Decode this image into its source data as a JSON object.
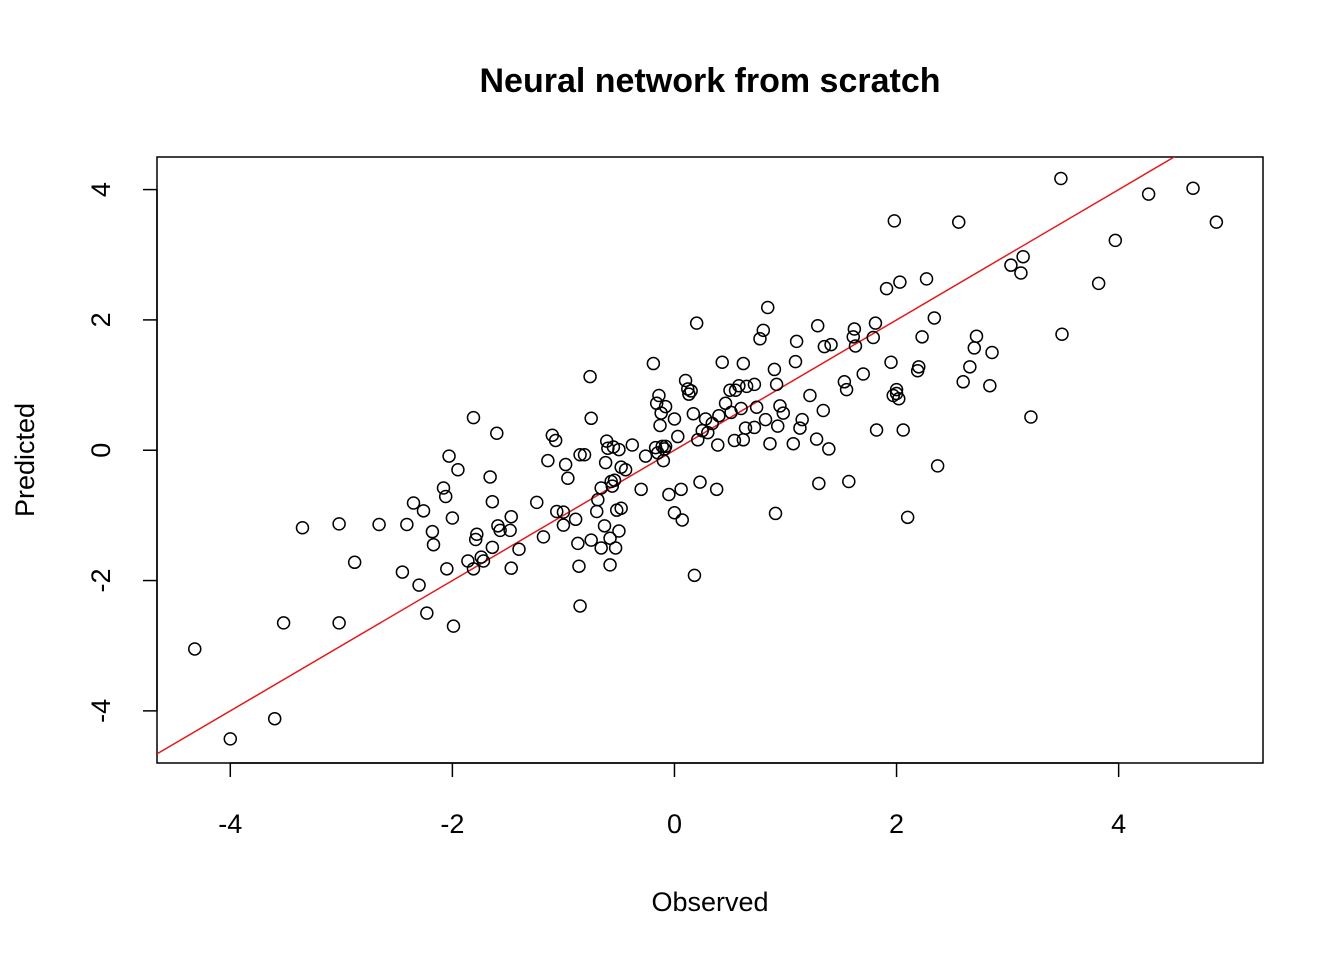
{
  "chart_data": {
    "type": "scatter",
    "title": "Neural network from scratch",
    "xlabel": "Observed",
    "ylabel": "Predicted",
    "xlim": [
      -4.66,
      5.3
    ],
    "ylim": [
      -4.8,
      4.5
    ],
    "xticks": [
      -4,
      -2,
      0,
      2,
      4
    ],
    "yticks": [
      -4,
      -2,
      0,
      2,
      4
    ],
    "xtick_labels": [
      "-4",
      "-2",
      "0",
      "2",
      "4"
    ],
    "ytick_labels": [
      "-4",
      "-2",
      "0",
      "2",
      "4"
    ],
    "grid": false,
    "point_marker": "open-circle",
    "point_color": "#000000",
    "reference_line": {
      "intercept": 0,
      "slope": 1,
      "color": "#e31a1c"
    },
    "points": [
      [
        -4.32,
        -3.05
      ],
      [
        -4.0,
        -4.43
      ],
      [
        -3.6,
        -4.12
      ],
      [
        -3.52,
        -2.65
      ],
      [
        -3.35,
        -1.19
      ],
      [
        -3.02,
        -1.13
      ],
      [
        -3.02,
        -2.65
      ],
      [
        -2.88,
        -1.72
      ],
      [
        -2.66,
        -1.14
      ],
      [
        -2.45,
        -1.87
      ],
      [
        -2.41,
        -1.14
      ],
      [
        -2.35,
        -0.81
      ],
      [
        -2.3,
        -2.07
      ],
      [
        -2.26,
        -0.93
      ],
      [
        -2.23,
        -2.5
      ],
      [
        -2.18,
        -1.25
      ],
      [
        -2.17,
        -1.45
      ],
      [
        -2.08,
        -0.58
      ],
      [
        -2.06,
        -0.71
      ],
      [
        -2.05,
        -1.82
      ],
      [
        -2.03,
        -0.09
      ],
      [
        -2.0,
        -1.04
      ],
      [
        -1.99,
        -2.7
      ],
      [
        -1.95,
        -0.3
      ],
      [
        -1.86,
        -1.7
      ],
      [
        -1.81,
        0.5
      ],
      [
        -1.81,
        -1.82
      ],
      [
        -1.79,
        -1.37
      ],
      [
        -1.78,
        -1.29
      ],
      [
        -1.74,
        -1.64
      ],
      [
        -1.72,
        -1.7
      ],
      [
        -1.66,
        -0.41
      ],
      [
        -1.64,
        -1.49
      ],
      [
        -1.64,
        -0.79
      ],
      [
        -1.6,
        0.26
      ],
      [
        -1.59,
        -1.16
      ],
      [
        -1.57,
        -1.23
      ],
      [
        -1.48,
        -1.23
      ],
      [
        -1.47,
        -1.02
      ],
      [
        -1.47,
        -1.81
      ],
      [
        -1.4,
        -1.52
      ],
      [
        -1.24,
        -0.8
      ],
      [
        -1.18,
        -1.33
      ],
      [
        -1.14,
        -0.16
      ],
      [
        -1.1,
        0.23
      ],
      [
        -1.07,
        0.15
      ],
      [
        -1.06,
        -0.94
      ],
      [
        -1.0,
        -0.95
      ],
      [
        -1.0,
        -1.15
      ],
      [
        -0.98,
        -0.22
      ],
      [
        -0.96,
        -0.43
      ],
      [
        -0.89,
        -1.06
      ],
      [
        -0.87,
        -1.43
      ],
      [
        -0.86,
        -1.78
      ],
      [
        -0.85,
        -2.39
      ],
      [
        -0.85,
        -0.07
      ],
      [
        -0.81,
        -0.07
      ],
      [
        -0.76,
        1.13
      ],
      [
        -0.75,
        0.49
      ],
      [
        -0.75,
        -1.38
      ],
      [
        -0.7,
        -0.94
      ],
      [
        -0.69,
        -0.76
      ],
      [
        -0.66,
        -0.58
      ],
      [
        -0.66,
        -1.5
      ],
      [
        -0.63,
        -1.16
      ],
      [
        -0.62,
        -0.19
      ],
      [
        -0.61,
        0.14
      ],
      [
        -0.6,
        0.03
      ],
      [
        -0.58,
        -1.35
      ],
      [
        -0.58,
        -1.76
      ],
      [
        -0.57,
        -0.48
      ],
      [
        -0.56,
        -0.55
      ],
      [
        -0.55,
        0.05
      ],
      [
        -0.54,
        -0.46
      ],
      [
        -0.53,
        -1.5
      ],
      [
        -0.52,
        -0.92
      ],
      [
        -0.5,
        0.01
      ],
      [
        -0.5,
        -1.24
      ],
      [
        -0.48,
        -0.89
      ],
      [
        -0.48,
        -0.26
      ],
      [
        -0.44,
        -0.3
      ],
      [
        -0.38,
        0.08
      ],
      [
        -0.3,
        -0.6
      ],
      [
        -0.26,
        -0.09
      ],
      [
        -0.19,
        1.33
      ],
      [
        -0.17,
        0.04
      ],
      [
        -0.16,
        0.72
      ],
      [
        -0.15,
        -0.04
      ],
      [
        -0.14,
        0.84
      ],
      [
        -0.13,
        0.38
      ],
      [
        -0.12,
        0.57
      ],
      [
        -0.11,
        0.06
      ],
      [
        -0.1,
        -0.16
      ],
      [
        -0.09,
        0.02
      ],
      [
        -0.08,
        0.67
      ],
      [
        -0.08,
        0.06
      ],
      [
        -0.05,
        -0.68
      ],
      [
        0.0,
        -0.96
      ],
      [
        0.0,
        0.48
      ],
      [
        0.03,
        0.21
      ],
      [
        0.06,
        -0.6
      ],
      [
        0.07,
        -1.07
      ],
      [
        0.1,
        1.07
      ],
      [
        0.12,
        0.94
      ],
      [
        0.13,
        0.86
      ],
      [
        0.15,
        0.91
      ],
      [
        0.17,
        0.56
      ],
      [
        0.18,
        -1.92
      ],
      [
        0.2,
        1.95
      ],
      [
        0.21,
        0.16
      ],
      [
        0.23,
        -0.49
      ],
      [
        0.25,
        0.3
      ],
      [
        0.28,
        0.48
      ],
      [
        0.3,
        0.27
      ],
      [
        0.34,
        0.41
      ],
      [
        0.38,
        -0.6
      ],
      [
        0.39,
        0.08
      ],
      [
        0.4,
        0.53
      ],
      [
        0.43,
        1.35
      ],
      [
        0.46,
        0.72
      ],
      [
        0.5,
        0.92
      ],
      [
        0.51,
        0.58
      ],
      [
        0.54,
        0.15
      ],
      [
        0.55,
        0.92
      ],
      [
        0.58,
        0.99
      ],
      [
        0.6,
        0.64
      ],
      [
        0.62,
        0.16
      ],
      [
        0.62,
        1.33
      ],
      [
        0.64,
        0.34
      ],
      [
        0.65,
        0.98
      ],
      [
        0.72,
        1.01
      ],
      [
        0.72,
        0.35
      ],
      [
        0.74,
        0.66
      ],
      [
        0.77,
        1.71
      ],
      [
        0.8,
        1.84
      ],
      [
        0.82,
        0.47
      ],
      [
        0.84,
        2.19
      ],
      [
        0.86,
        0.1
      ],
      [
        0.9,
        1.24
      ],
      [
        0.91,
        -0.97
      ],
      [
        0.92,
        1.01
      ],
      [
        0.93,
        0.37
      ],
      [
        0.95,
        0.68
      ],
      [
        0.98,
        0.57
      ],
      [
        1.07,
        0.1
      ],
      [
        1.09,
        1.36
      ],
      [
        1.1,
        1.67
      ],
      [
        1.13,
        0.34
      ],
      [
        1.15,
        0.47
      ],
      [
        1.22,
        0.84
      ],
      [
        1.28,
        0.17
      ],
      [
        1.29,
        1.91
      ],
      [
        1.3,
        -0.51
      ],
      [
        1.34,
        0.61
      ],
      [
        1.35,
        1.59
      ],
      [
        1.39,
        0.02
      ],
      [
        1.41,
        1.62
      ],
      [
        1.53,
        1.05
      ],
      [
        1.55,
        0.93
      ],
      [
        1.57,
        -0.48
      ],
      [
        1.61,
        1.74
      ],
      [
        1.62,
        1.86
      ],
      [
        1.63,
        1.6
      ],
      [
        1.7,
        1.17
      ],
      [
        1.79,
        1.73
      ],
      [
        1.81,
        1.95
      ],
      [
        1.82,
        0.31
      ],
      [
        1.91,
        2.48
      ],
      [
        1.95,
        1.35
      ],
      [
        1.97,
        0.84
      ],
      [
        1.98,
        3.52
      ],
      [
        2.0,
        0.93
      ],
      [
        2.0,
        0.87
      ],
      [
        2.02,
        0.79
      ],
      [
        2.03,
        2.58
      ],
      [
        2.06,
        0.31
      ],
      [
        2.1,
        -1.03
      ],
      [
        2.19,
        1.22
      ],
      [
        2.2,
        1.28
      ],
      [
        2.23,
        1.74
      ],
      [
        2.27,
        2.63
      ],
      [
        2.34,
        2.03
      ],
      [
        2.37,
        -0.24
      ],
      [
        2.56,
        3.5
      ],
      [
        2.6,
        1.05
      ],
      [
        2.66,
        1.28
      ],
      [
        2.7,
        1.57
      ],
      [
        2.72,
        1.75
      ],
      [
        2.84,
        0.99
      ],
      [
        2.86,
        1.5
      ],
      [
        3.03,
        2.84
      ],
      [
        3.12,
        2.72
      ],
      [
        3.14,
        2.97
      ],
      [
        3.21,
        0.51
      ],
      [
        3.48,
        4.17
      ],
      [
        3.49,
        1.78
      ],
      [
        3.82,
        2.56
      ],
      [
        3.97,
        3.22
      ],
      [
        4.27,
        3.93
      ],
      [
        4.67,
        4.02
      ],
      [
        4.88,
        3.5
      ]
    ]
  }
}
